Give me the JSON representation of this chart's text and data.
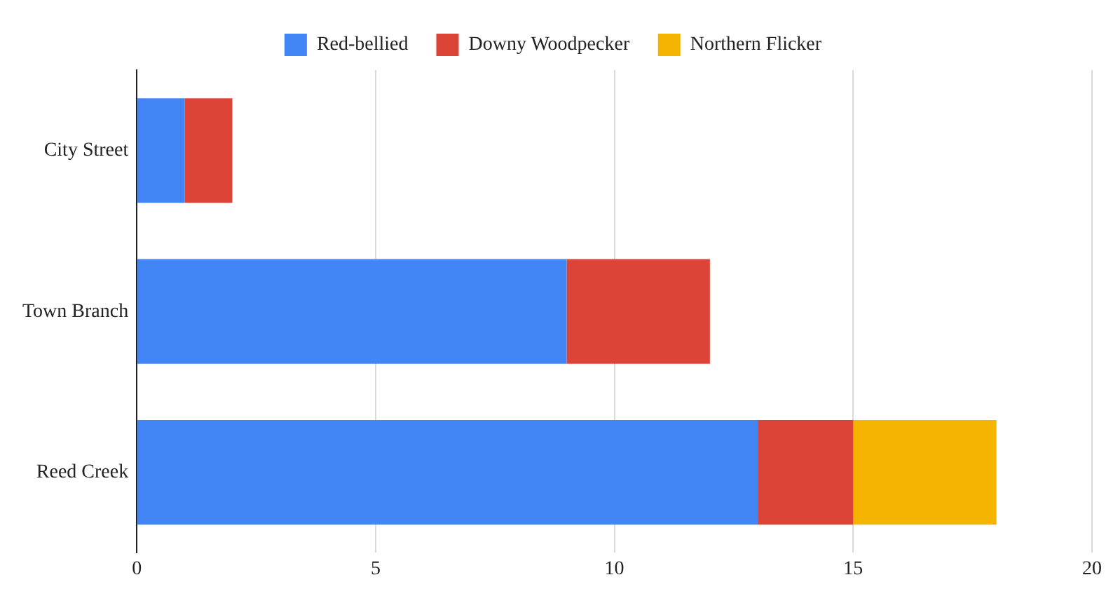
{
  "chart_data": {
    "type": "bar",
    "orientation": "horizontal",
    "stacked": true,
    "categories": [
      "City Street",
      "Town Branch",
      "Reed Creek"
    ],
    "series": [
      {
        "name": "Red-bellied",
        "color": "#4285f4",
        "values": [
          1,
          9,
          13
        ]
      },
      {
        "name": "Downy Woodpecker",
        "color": "#db4437",
        "values": [
          1,
          3,
          2
        ]
      },
      {
        "name": "Northern Flicker",
        "color": "#f4b400",
        "values": [
          0,
          0,
          3
        ]
      }
    ],
    "xlim": [
      0,
      20
    ],
    "xticks": [
      0,
      5,
      10,
      15,
      20
    ],
    "grid": "x",
    "legend": "top"
  }
}
